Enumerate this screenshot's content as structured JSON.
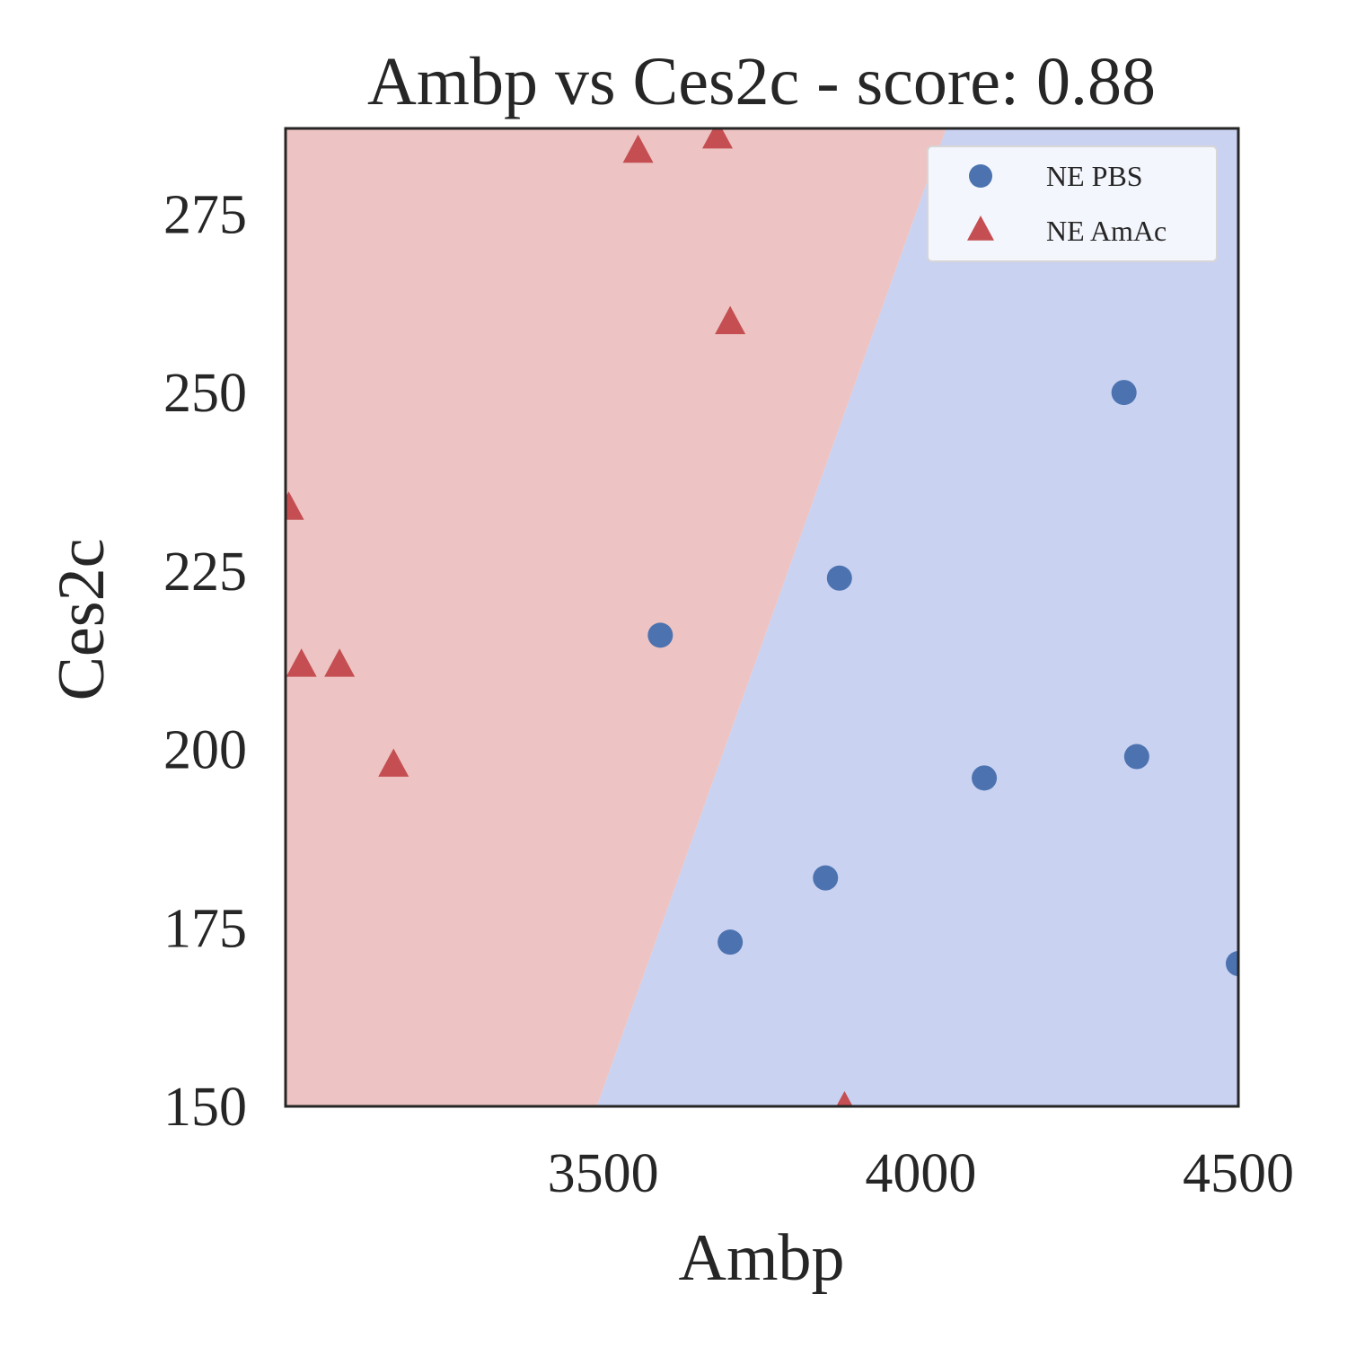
{
  "chart_data": {
    "type": "scatter",
    "title": "Ambp vs Ces2c - score: 0.88",
    "xlabel": "Ambp",
    "ylabel": "Ces2c",
    "xlim": [
      3000,
      4500
    ],
    "ylim": [
      150,
      287
    ],
    "x_ticks": [
      3500,
      4000,
      4500
    ],
    "y_ticks": [
      150,
      175,
      200,
      225,
      250,
      275
    ],
    "grid": false,
    "legend_position": "top-right",
    "decision_boundary": {
      "points": [
        [
          3490,
          150
        ],
        [
          4040,
          287
        ]
      ],
      "left_class": "NE AmAc",
      "right_class": "NE PBS"
    },
    "series": [
      {
        "name": "NE PBS",
        "marker": "circle",
        "color": "#4c72b0",
        "region_color": "#c9d2f1",
        "x": [
          3590,
          3700,
          3850,
          3872,
          4100,
          4320,
          4340,
          4500
        ],
        "y": [
          216,
          173,
          182,
          224,
          196,
          250,
          199,
          170
        ]
      },
      {
        "name": "NE AmAc",
        "marker": "triangle",
        "color": "#c44e52",
        "region_color": "#edc4c3",
        "x": [
          3005,
          3025,
          3085,
          3170,
          3555,
          3680,
          3700,
          3880
        ],
        "y": [
          234,
          212,
          212,
          198,
          284,
          286,
          260,
          150
        ]
      }
    ]
  }
}
